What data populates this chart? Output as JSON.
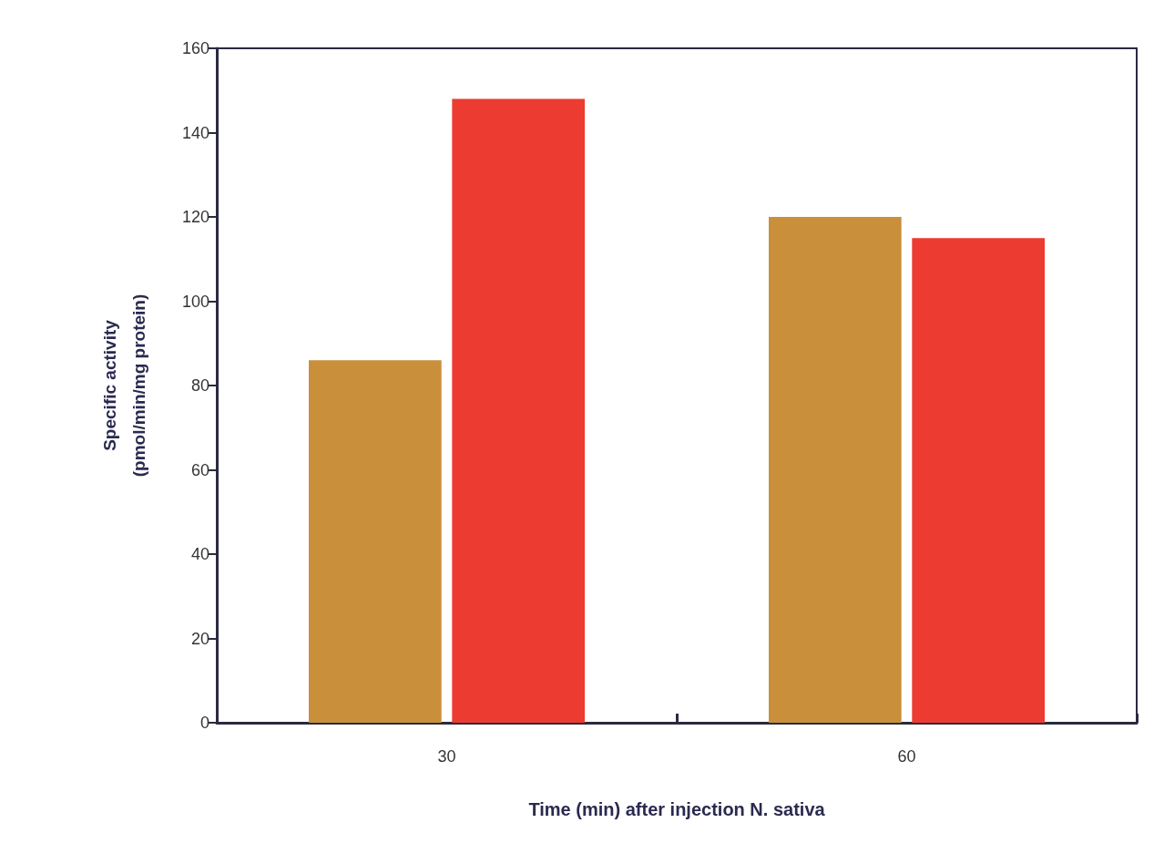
{
  "chart_data": {
    "type": "bar",
    "xlabel": "Time (min) after injection N. sativa",
    "ylabel": "Specific activity\n(pmol/min/mg protein)",
    "categories": [
      "30",
      "60"
    ],
    "series": [
      {
        "color": "#c98f3a",
        "values": [
          86,
          120
        ]
      },
      {
        "color": "#ec3b30",
        "values": [
          148,
          115
        ]
      }
    ],
    "ylim": [
      0,
      160
    ],
    "yticks": [
      0,
      20,
      40,
      60,
      80,
      100,
      120,
      140,
      160
    ],
    "grid": false
  }
}
